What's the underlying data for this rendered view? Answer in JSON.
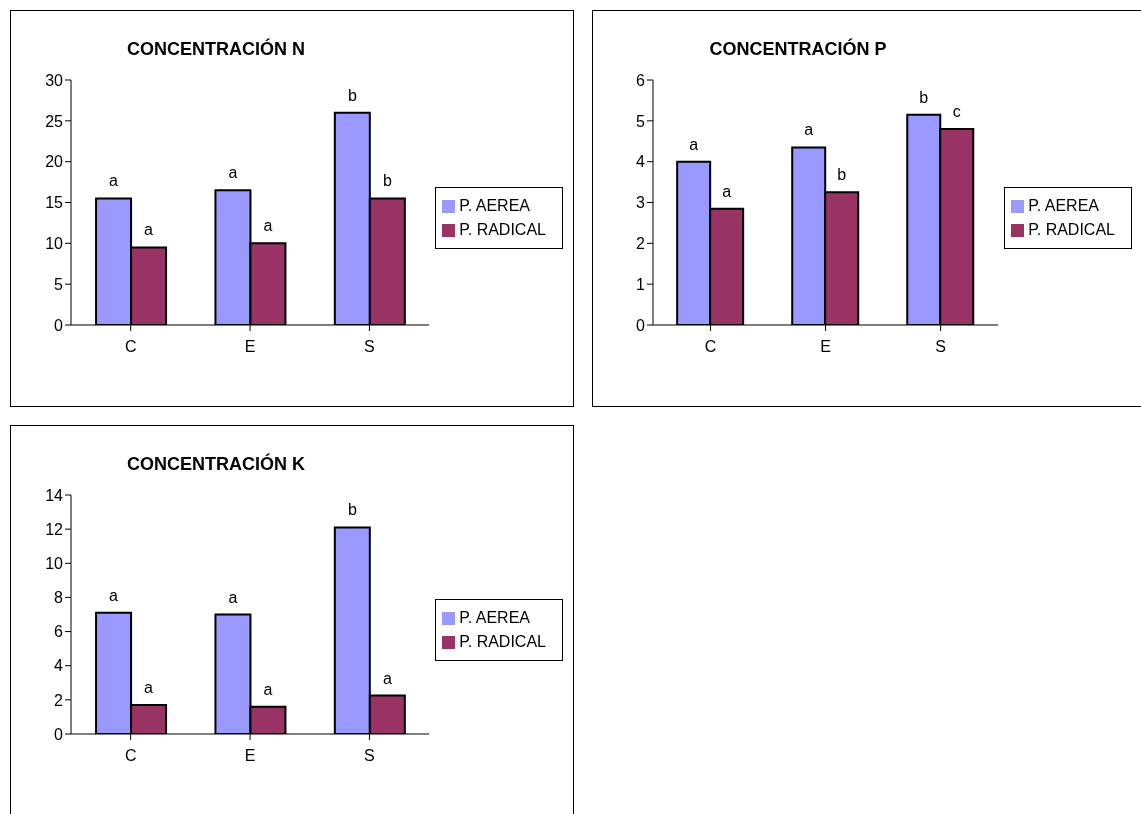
{
  "chart_data": [
    {
      "type": "bar",
      "title": "CONCENTRACIÓN N",
      "categories": [
        "C",
        "E",
        "S"
      ],
      "series": [
        {
          "name": "P. AEREA",
          "color": "#9999ff",
          "values": [
            15.5,
            16.5,
            26
          ]
        },
        {
          "name": "P. RADICAL",
          "color": "#993366",
          "values": [
            9.5,
            10,
            15.5
          ]
        }
      ],
      "ylim": [
        0,
        30
      ],
      "yticks": [
        0,
        5,
        10,
        15,
        20,
        25,
        30
      ],
      "grid": false,
      "legend": "right",
      "annotations": [
        {
          "text": "a",
          "x": "C",
          "y": 15.5
        },
        {
          "text": "a",
          "x": "C",
          "y": 9.5
        },
        {
          "text": "a",
          "x": "E",
          "y": 16.5
        },
        {
          "text": "a",
          "x": "E",
          "y": 10
        },
        {
          "text": "b",
          "x": "S",
          "y": 26
        },
        {
          "text": "b",
          "x": "S",
          "y": 15.5
        }
      ]
    },
    {
      "type": "bar",
      "title": "CONCENTRACIÓN P",
      "categories": [
        "C",
        "E",
        "S"
      ],
      "series": [
        {
          "name": "P. AEREA",
          "color": "#9999ff",
          "values": [
            4.0,
            4.35,
            5.15
          ]
        },
        {
          "name": "P. RADICAL",
          "color": "#993366",
          "values": [
            2.85,
            3.25,
            4.8
          ]
        }
      ],
      "ylim": [
        0,
        6
      ],
      "yticks": [
        0,
        1,
        2,
        3,
        4,
        5,
        6
      ],
      "grid": false,
      "legend": "right",
      "annotations": [
        {
          "text": "a",
          "x": "C",
          "y": 4.0
        },
        {
          "text": "a",
          "x": "C",
          "y": 2.85
        },
        {
          "text": "a",
          "x": "E",
          "y": 4.35
        },
        {
          "text": "b",
          "x": "E",
          "y": 3.25
        },
        {
          "text": "b",
          "x": "S",
          "y": 5.15
        },
        {
          "text": "c",
          "x": "S",
          "y": 4.8
        }
      ]
    },
    {
      "type": "bar",
      "title": "CONCENTRACIÓN K",
      "categories": [
        "C",
        "E",
        "S"
      ],
      "series": [
        {
          "name": "P. AEREA",
          "color": "#9999ff",
          "values": [
            7.1,
            7.0,
            12.1
          ]
        },
        {
          "name": "P. RADICAL",
          "color": "#993366",
          "values": [
            1.7,
            1.6,
            2.25
          ]
        }
      ],
      "ylim": [
        0,
        14
      ],
      "yticks": [
        0,
        2,
        4,
        6,
        8,
        10,
        12,
        14
      ],
      "grid": false,
      "legend": "right",
      "annotations": [
        {
          "text": "a",
          "x": "C",
          "y": 7.1
        },
        {
          "text": "a",
          "x": "C",
          "y": 1.7
        },
        {
          "text": "a",
          "x": "E",
          "y": 7.0
        },
        {
          "text": "a",
          "x": "E",
          "y": 1.6
        },
        {
          "text": "b",
          "x": "S",
          "y": 12.1
        },
        {
          "text": "a",
          "x": "S",
          "y": 2.25
        }
      ]
    }
  ]
}
